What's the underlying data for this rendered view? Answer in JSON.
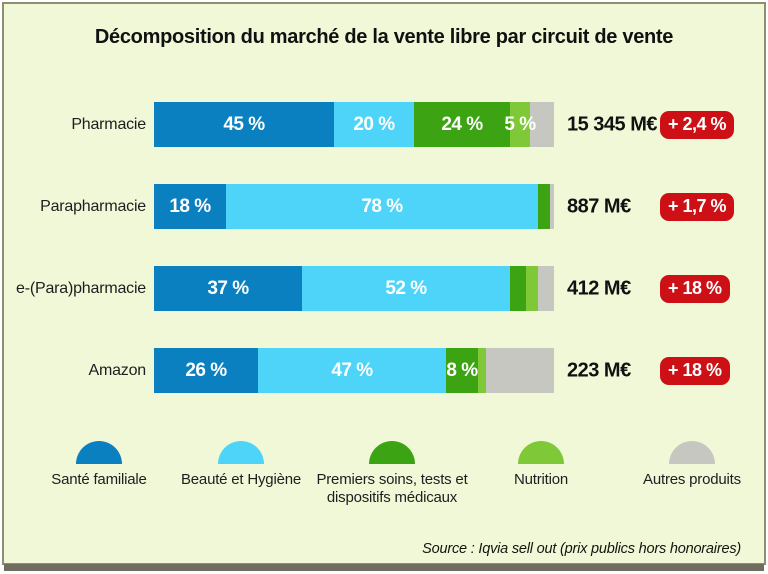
{
  "title": "Décomposition du marché de la vente libre par circuit de vente",
  "source": "Source : Iqvia sell out (prix publics hors honoraires)",
  "colors": {
    "sante_familiale": "#0a80c0",
    "beaute_hygiene": "#4ed4f9",
    "premiers_soins": "#3ca413",
    "nutrition": "#7fc837",
    "autres_produits": "#c7c7c2",
    "badge_red": "#cc1016",
    "background": "#f1f8d8"
  },
  "chart_data": {
    "type": "bar",
    "subtype": "horizontal-stacked",
    "unit": "%",
    "title": "Décomposition du marché de la vente libre par circuit de vente",
    "categories": [
      "Pharmacie",
      "Parapharmacie",
      "e-(Para)pharmacie",
      "Amazon"
    ],
    "series": [
      {
        "name": "Santé familiale",
        "color_key": "sante_familiale",
        "values": [
          45,
          18,
          37,
          26
        ]
      },
      {
        "name": "Beauté et Hygiène",
        "color_key": "beaute_hygiene",
        "values": [
          20,
          78,
          52,
          47
        ]
      },
      {
        "name": "Premiers soins, tests et dispositifs médicaux",
        "color_key": "premiers_soins",
        "values": [
          24,
          3,
          4,
          8
        ]
      },
      {
        "name": "Nutrition",
        "color_key": "nutrition",
        "values": [
          5,
          0,
          3,
          2
        ]
      },
      {
        "name": "Autres produits",
        "color_key": "autres_produits",
        "values": [
          6,
          1,
          4,
          17
        ]
      }
    ],
    "segment_labels": [
      [
        "45 %",
        "20 %",
        "24 %",
        "5 %",
        ""
      ],
      [
        "18 %",
        "78 %",
        "",
        "",
        ""
      ],
      [
        "37 %",
        "52 %",
        "",
        "",
        ""
      ],
      [
        "26 %",
        "47 %",
        "8 %",
        "",
        ""
      ]
    ],
    "totals": [
      "15 345 M€",
      "887 M€",
      "412 M€",
      "223 M€"
    ],
    "growth": [
      "+ 2,4 %",
      "+ 1,7 %",
      "+ 18 %",
      "+ 18 %"
    ],
    "xlim": [
      0,
      100
    ],
    "grid": false,
    "legend_position": "bottom"
  },
  "legend": [
    {
      "label": "Santé familiale",
      "color_key": "sante_familiale"
    },
    {
      "label": "Beauté et Hygiène",
      "color_key": "beaute_hygiene"
    },
    {
      "label": "Premiers soins, tests et dispositifs médicaux",
      "color_key": "premiers_soins"
    },
    {
      "label": "Nutrition",
      "color_key": "nutrition"
    },
    {
      "label": "Autres produits",
      "color_key": "autres_produits"
    }
  ]
}
